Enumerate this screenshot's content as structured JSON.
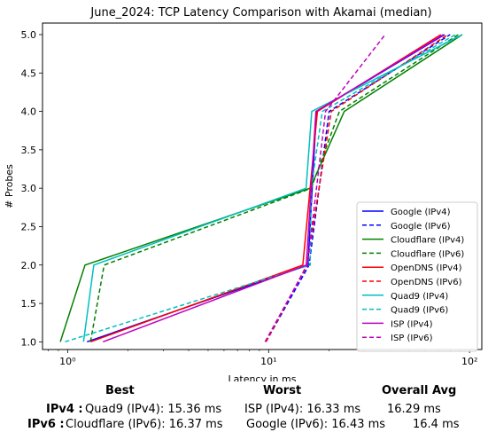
{
  "chart_data": {
    "type": "line",
    "title": "June_2024: TCP Latency Comparison with Akamai (median)",
    "xlabel": "Latency in ms",
    "ylabel": "# Probes",
    "xscale": "log",
    "xlim": [
      0.75,
      115
    ],
    "ylim": [
      0.9,
      5.15
    ],
    "xticks": [
      {
        "value": 1,
        "label": "10⁰"
      },
      {
        "value": 10,
        "label": "10¹"
      },
      {
        "value": 100,
        "label": "10²"
      }
    ],
    "yticks": [
      1.0,
      1.5,
      2.0,
      2.5,
      3.0,
      3.5,
      4.0,
      4.5,
      5.0
    ],
    "ytick_labels": [
      "1.0",
      "1.5",
      "2.0",
      "2.5",
      "3.0",
      "3.5",
      "4.0",
      "4.5",
      "5.0"
    ],
    "legend_position": "lower-right",
    "grid": false,
    "series": [
      {
        "name": "Google (IPv4)",
        "color": "#0000ff",
        "dash": "solid",
        "x": [
          1.25,
          15.7,
          17.3,
          75
        ],
        "y": [
          1,
          2,
          4,
          5
        ]
      },
      {
        "name": "Google (IPv6)",
        "color": "#0000ff",
        "dash": "dashed",
        "x": [
          9.7,
          15.9,
          20,
          80
        ],
        "y": [
          1,
          2,
          4,
          5
        ]
      },
      {
        "name": "Cloudflare (IPv4)",
        "color": "#008000",
        "dash": "solid",
        "x": [
          0.92,
          1.22,
          16.1,
          23.8,
          92
        ],
        "y": [
          1,
          2,
          3,
          4,
          5
        ]
      },
      {
        "name": "Cloudflare (IPv6)",
        "color": "#008000",
        "dash": "dashed",
        "x": [
          1.3,
          1.52,
          16.3,
          22.5,
          88
        ],
        "y": [
          1,
          2,
          3,
          4,
          5
        ]
      },
      {
        "name": "OpenDNS (IPv4)",
        "color": "#ff0000",
        "dash": "solid",
        "x": [
          1.3,
          14.8,
          17.5,
          72
        ],
        "y": [
          1,
          2,
          4,
          5
        ]
      },
      {
        "name": "OpenDNS (IPv6)",
        "color": "#ff0000",
        "dash": "dashed",
        "x": [
          9.7,
          15.5,
          20.5,
          78
        ],
        "y": [
          1,
          2,
          4,
          5
        ]
      },
      {
        "name": "Quad9 (IPv4)",
        "color": "#00bfbf",
        "dash": "solid",
        "x": [
          1.2,
          1.35,
          15.36,
          16.4,
          92
        ],
        "y": [
          1,
          2,
          3,
          4,
          5
        ]
      },
      {
        "name": "Quad9 (IPv6)",
        "color": "#00bfbf",
        "dash": "dashed",
        "x": [
          0.97,
          16.1,
          16.3,
          18.5,
          85
        ],
        "y": [
          1,
          2,
          3,
          4,
          5
        ]
      },
      {
        "name": "ISP (IPv4)",
        "color": "#bf00bf",
        "dash": "solid",
        "x": [
          1.5,
          15.4,
          17.2,
          74
        ],
        "y": [
          1,
          2,
          4,
          5
        ]
      },
      {
        "name": "ISP (IPv6)",
        "color": "#bf00bf",
        "dash": "dashed",
        "x": [
          9.6,
          15.6,
          19.2,
          38
        ],
        "y": [
          1,
          2,
          4,
          5
        ]
      }
    ]
  },
  "summary": {
    "headers": {
      "best": "Best",
      "worst": "Worst",
      "avg": "Overall Avg"
    },
    "rows": [
      {
        "label": "IPv4 :",
        "best": "Quad9 (IPv4): 15.36 ms",
        "worst": "ISP (IPv4): 16.33 ms",
        "avg": "16.29 ms"
      },
      {
        "label": "IPv6 :",
        "best": "Cloudflare (IPv6): 16.37 ms",
        "worst": "Google (IPv6): 16.43 ms",
        "avg": "16.4 ms"
      }
    ]
  }
}
